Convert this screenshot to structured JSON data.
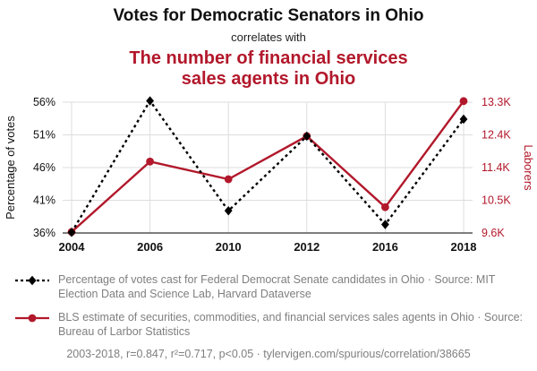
{
  "header": {
    "title_top": "Votes for Democratic Senators in Ohio",
    "connector": "correlates with",
    "title_bottom": "The number of financial services\nsales agents in Ohio"
  },
  "colors": {
    "accent_red": "#b2182b",
    "series_black": "#000000",
    "grid": "#dddddd",
    "legend_gray": "#7f7f7f"
  },
  "chart_data": {
    "type": "line",
    "title": "Votes for Democratic Senators in Ohio correlates with The number of financial services sales agents in Ohio",
    "x": [
      2004,
      2006,
      2010,
      2012,
      2016,
      2018
    ],
    "x_tick_labels": [
      "2004",
      "2006",
      "2010",
      "2012",
      "2016",
      "2018"
    ],
    "grid": true,
    "left_axis": {
      "label": "Percentage of votes",
      "min": 36,
      "max": 56,
      "ticks": [
        36,
        41,
        46,
        51,
        56
      ],
      "tick_labels": [
        "36%",
        "41%",
        "46%",
        "51%",
        "56%"
      ]
    },
    "right_axis": {
      "label": "Laborers",
      "min": 9.6,
      "max": 13.3,
      "ticks": [
        9.6,
        10.5,
        11.4,
        12.4,
        13.3
      ],
      "tick_labels": [
        "9.6K",
        "10.5K",
        "11.4K",
        "12.4K",
        "13.3K"
      ]
    },
    "series": [
      {
        "name": "votes",
        "axis": "left",
        "color": "#000000",
        "style": "dashed",
        "marker": "diamond",
        "values": [
          36.1,
          56.2,
          39.4,
          50.8,
          37.3,
          53.4
        ]
      },
      {
        "name": "agents",
        "axis": "right",
        "color": "#b2182b",
        "style": "solid",
        "marker": "circle",
        "values": [
          9.63,
          11.62,
          11.12,
          12.34,
          10.33,
          13.33
        ]
      }
    ]
  },
  "legend": [
    {
      "text": "Percentage of votes cast for Federal Democrat Senate candidates in Ohio · Source: MIT Election Data and Science Lab, Harvard Dataverse"
    },
    {
      "text": "BLS estimate of securities, commodities, and financial services sales agents in Ohio · Source: Bureau of Larbor Statistics"
    }
  ],
  "footer": "2003-2018, r=0.847, r²=0.717, p<0.05 · tylervigen.com/spurious/correlation/38665"
}
